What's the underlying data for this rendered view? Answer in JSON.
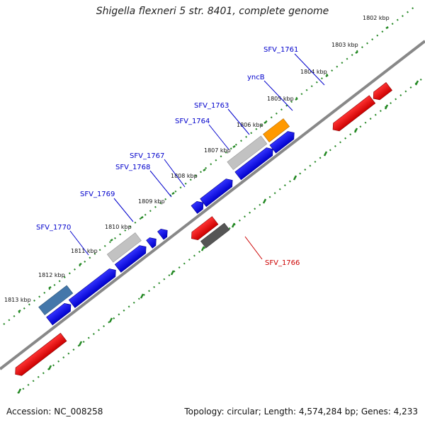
{
  "title": "Shigella flexneri 5 str. 8401, complete genome",
  "footer": {
    "accession": "Accession: NC_008258",
    "summary": "Topology: circular; Length: 4,574,284 bp; Genes: 4,233"
  },
  "ruler": {
    "kbp_labels": [
      "1802 kbp",
      "1803 kbp",
      "1804 kbp",
      "1805 kbp",
      "1806 kbp",
      "1807 kbp",
      "1808 kbp",
      "1809 kbp",
      "1810 kbp",
      "1811 kbp",
      "1812 kbp",
      "1813 kbp"
    ]
  },
  "gene_labels": {
    "sfv1761": "SFV_1761",
    "yncb": "yncB",
    "sfv1763": "SFV_1763",
    "sfv1764": "SFV_1764",
    "sfv1767": "SFV_1767",
    "sfv1768": "SFV_1768",
    "sfv1769": "SFV_1769",
    "sfv1770": "SFV_1770",
    "sfv1766": "SFV_1766"
  },
  "colors": {
    "forward_cds": "#0000ee",
    "reverse_cds": "#ee0000",
    "pseudogene": "#bbbbbb",
    "rna": "#ff9900",
    "highlight": "#4477aa",
    "dark_feature": "#555555",
    "backbone": "#888888",
    "tick": "#228822",
    "forward_label": "#0000cc",
    "reverse_label": "#cc0000"
  }
}
